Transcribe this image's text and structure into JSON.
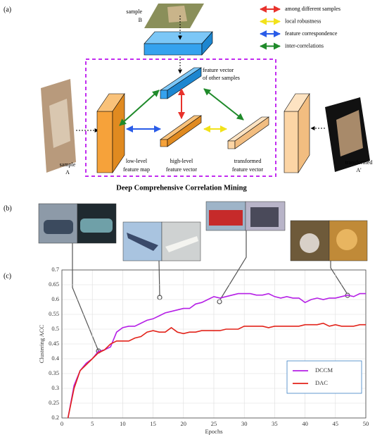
{
  "panel_labels": [
    "(a)",
    "(b)",
    "(c)"
  ],
  "diagram": {
    "title": "Deep Comprehensive Correlation Mining",
    "sample_b": [
      "sample",
      "B"
    ],
    "sample_a": [
      "sample",
      "A"
    ],
    "transformed_a": [
      "transformed",
      "A'"
    ],
    "other_vector": [
      "feature vector",
      "of other samples"
    ],
    "low_level": [
      "low-level",
      "feature map"
    ],
    "high_level": [
      "high-level",
      "feature vector"
    ],
    "transformed_vector": [
      "transformed",
      "feature vector"
    ],
    "legend": [
      {
        "label": "among different samples",
        "color": "#e8322c"
      },
      {
        "label": "local robustness",
        "color": "#f2e21a"
      },
      {
        "label": "feature correspondence",
        "color": "#2a5ce8"
      },
      {
        "label": "inter-correlations",
        "color": "#1f8a2a"
      }
    ]
  },
  "chart_data": {
    "type": "line",
    "xlabel": "Epochs",
    "ylabel": "Clustering ACC",
    "x": [
      1,
      2,
      3,
      4,
      5,
      6,
      7,
      8,
      9,
      10,
      11,
      12,
      13,
      14,
      15,
      16,
      17,
      18,
      19,
      20,
      21,
      22,
      23,
      24,
      25,
      26,
      27,
      28,
      29,
      30,
      31,
      32,
      33,
      34,
      35,
      36,
      37,
      38,
      39,
      40,
      41,
      42,
      43,
      44,
      45,
      46,
      47,
      48,
      49,
      50
    ],
    "series": [
      {
        "name": "DCCM",
        "color": "#b51fe6",
        "values": [
          0.2,
          0.31,
          0.36,
          0.385,
          0.4,
          0.425,
          0.43,
          0.44,
          0.49,
          0.505,
          0.51,
          0.51,
          0.52,
          0.53,
          0.535,
          0.545,
          0.555,
          0.56,
          0.565,
          0.57,
          0.57,
          0.585,
          0.59,
          0.6,
          0.61,
          0.605,
          0.61,
          0.615,
          0.62,
          0.62,
          0.62,
          0.615,
          0.615,
          0.62,
          0.61,
          0.605,
          0.61,
          0.605,
          0.605,
          0.59,
          0.6,
          0.605,
          0.6,
          0.605,
          0.605,
          0.61,
          0.615,
          0.61,
          0.62,
          0.62
        ]
      },
      {
        "name": "DAC",
        "color": "#e2231a",
        "values": [
          0.2,
          0.3,
          0.36,
          0.38,
          0.4,
          0.42,
          0.43,
          0.45,
          0.46,
          0.46,
          0.46,
          0.47,
          0.475,
          0.49,
          0.495,
          0.49,
          0.49,
          0.505,
          0.49,
          0.485,
          0.49,
          0.49,
          0.495,
          0.495,
          0.495,
          0.495,
          0.5,
          0.5,
          0.5,
          0.51,
          0.51,
          0.51,
          0.51,
          0.505,
          0.51,
          0.51,
          0.51,
          0.51,
          0.51,
          0.515,
          0.515,
          0.515,
          0.52,
          0.51,
          0.515,
          0.51,
          0.51,
          0.51,
          0.515,
          0.515
        ]
      }
    ],
    "xlim": [
      0,
      50
    ],
    "ylim": [
      0.2,
      0.7
    ],
    "xticks": [
      0,
      5,
      10,
      15,
      20,
      25,
      30,
      35,
      40,
      45,
      50
    ],
    "yticks": [
      0.2,
      0.25,
      0.3,
      0.35,
      0.4,
      0.45,
      0.5,
      0.55,
      0.6,
      0.65,
      0.7
    ],
    "grid": true,
    "legend": "lower-right"
  }
}
